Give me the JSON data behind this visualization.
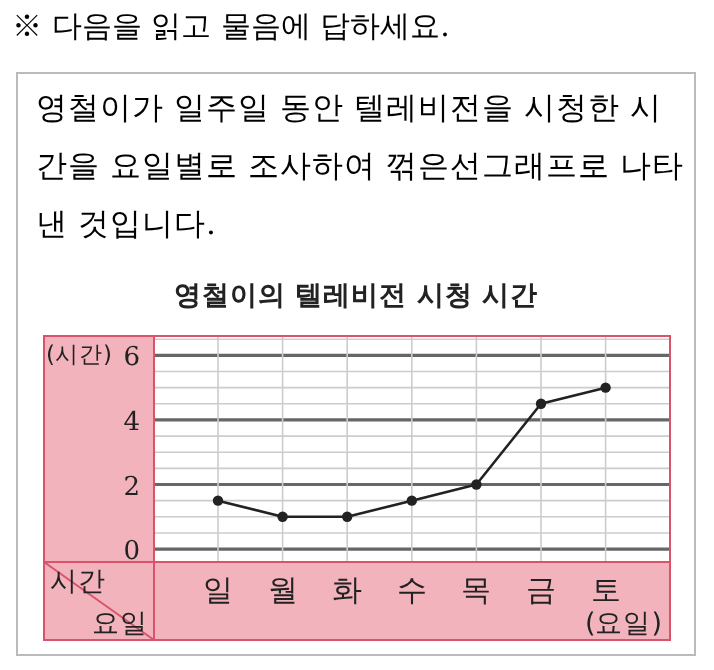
{
  "chart_data": {
    "type": "line",
    "title": "영철이의 텔레비전 시청 시간",
    "ylabel": "(시간)",
    "xlabel": "(요일)",
    "annotations": [
      "※ 다음을 읽고 물음에 답하세요.",
      "영철이가 일주일 동안 텔레비전을 시청한 시간을 요일별로 조사하여 꺾은선그래프로 나타낸 것입니다.",
      "시간",
      "요일"
    ],
    "categories": [
      "일",
      "월",
      "화",
      "수",
      "목",
      "금",
      "토"
    ],
    "values": [
      1.5,
      1,
      1,
      1.5,
      2,
      4.5,
      5
    ],
    "color": "#222222",
    "ylim": [
      -0.4,
      6.6
    ],
    "yticks": [
      0,
      {
        "value": 0.5,
        "label": null
      },
      {
        "value": 1,
        "label": null
      },
      {
        "value": 1.5,
        "label": null
      },
      2,
      {
        "value": 2.5,
        "label": null
      },
      {
        "value": 3,
        "label": null
      },
      {
        "value": 3.5,
        "label": null
      },
      4,
      {
        "value": 4.5,
        "label": null
      },
      {
        "value": 5,
        "label": null
      },
      {
        "value": 5.5,
        "label": null
      },
      6,
      {
        "value": 6.5,
        "label": null
      }
    ],
    "grid": true,
    "marker": "circle",
    "line_style": "solid"
  }
}
